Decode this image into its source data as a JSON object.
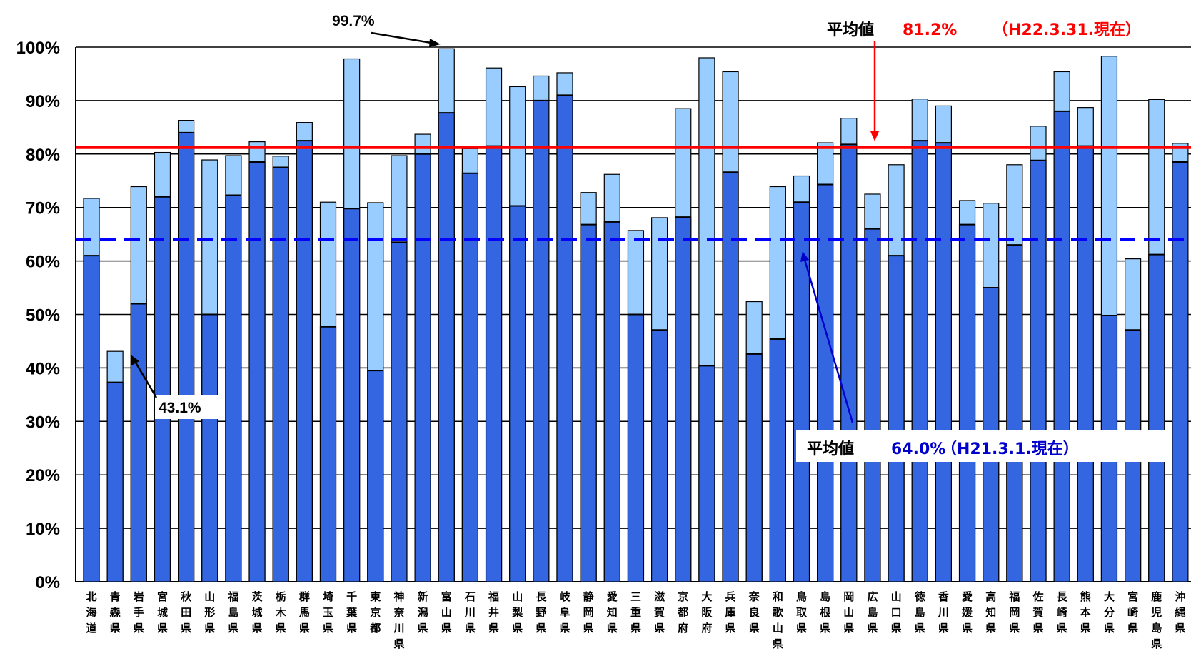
{
  "chart_data": {
    "type": "bar",
    "y_tick_labels": [
      "0%",
      "10%",
      "20%",
      "30%",
      "40%",
      "50%",
      "60%",
      "70%",
      "80%",
      "90%",
      "100%"
    ],
    "ylim": [
      0,
      100
    ],
    "grid": true,
    "categories": [
      "北海道",
      "青森県",
      "岩手県",
      "宮城県",
      "秋田県",
      "山形県",
      "福島県",
      "茨城県",
      "栃木県",
      "群馬県",
      "埼玉県",
      "千葉県",
      "東京都",
      "神奈川県",
      "新潟県",
      "富山県",
      "石川県",
      "福井県",
      "山梨県",
      "長野県",
      "岐阜県",
      "静岡県",
      "愛知県",
      "三重県",
      "滋賀県",
      "京都府",
      "大阪府",
      "兵庫県",
      "奈良県",
      "和歌山県",
      "鳥取県",
      "島根県",
      "岡山県",
      "広島県",
      "山口県",
      "徳島県",
      "香川県",
      "愛媛県",
      "高知県",
      "福岡県",
      "佐賀県",
      "長崎県",
      "熊本県",
      "大分県",
      "宮崎県",
      "鹿児島県",
      "沖縄県"
    ],
    "series": [
      {
        "values": [
          61,
          37.3,
          52,
          72,
          84,
          50,
          72.3,
          78.5,
          77.5,
          82.5,
          47.7,
          69.8,
          39.5,
          63.5,
          80,
          87.7,
          76.4,
          81.5,
          70.3,
          90,
          91,
          66.8,
          67.3,
          50,
          47.1,
          68.2,
          40.4,
          76.6,
          42.6,
          45.4,
          71,
          74.3,
          81.8,
          66,
          61,
          82.5,
          82.1,
          66.8,
          55,
          63,
          78.8,
          88,
          81.5,
          49.8,
          47.1,
          61.2,
          78.5
        ]
      },
      {
        "values": [
          71.7,
          43.1,
          73.9,
          80.3,
          86.3,
          78.9,
          79.7,
          82.3,
          79.6,
          85.9,
          71,
          97.8,
          70.9,
          79.7,
          83.7,
          99.7,
          81,
          96.1,
          92.6,
          94.6,
          95.2,
          72.8,
          76.2,
          65.7,
          68.1,
          88.5,
          98,
          95.4,
          52.4,
          73.9,
          75.9,
          82.1,
          86.7,
          72.5,
          78,
          90.3,
          89,
          71.3,
          70.8,
          78,
          85.2,
          95.4,
          88.7,
          98.3,
          60.4,
          90.2,
          82
        ]
      }
    ],
    "reference_lines": [
      {
        "label": "平均値",
        "value_label": "81.2%",
        "note": "（H22.3.31.現在）",
        "value": 81.2,
        "style": "solid",
        "color": "#ff0000"
      },
      {
        "label": "平均値",
        "value_label": "64.0%",
        "note": "（H21.3.1.現在）",
        "value": 64.0,
        "style": "dashed",
        "color": "#0000ff"
      }
    ],
    "annotations": [
      {
        "text": "99.7%",
        "category": "富山県"
      },
      {
        "text": "43.1%",
        "category": "青森県"
      }
    ]
  },
  "colors": {
    "dark_bar": "#3366e0",
    "light_bar": "#99ccff",
    "bar_outline": "#000000",
    "grid": "#000000",
    "red_line": "#ff0000",
    "blue_line": "#0000ff",
    "red_label": "#ff0000",
    "blue_label": "#0000cc"
  }
}
